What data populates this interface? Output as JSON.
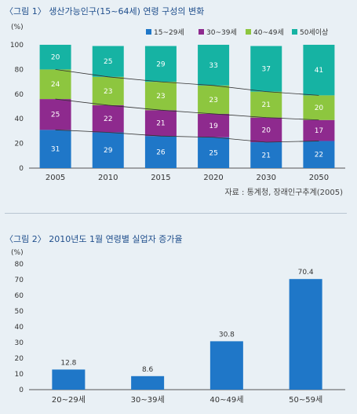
{
  "chart_data": [
    {
      "type": "bar",
      "stacked": true,
      "title": "〈그림 1〉 생산가능인구(15~64세) 연령 구성의 변화",
      "ylabel": "(%)",
      "ylim": [
        0,
        100
      ],
      "yticks": [
        0,
        20,
        40,
        60,
        80,
        100
      ],
      "categories": [
        "2005",
        "2010",
        "2015",
        "2020",
        "2030",
        "2050"
      ],
      "series": [
        {
          "name": "15~29세",
          "color": "#1f77c8",
          "values": [
            31,
            29,
            26,
            25,
            21,
            22
          ]
        },
        {
          "name": "30~39세",
          "color": "#8e2a8e",
          "values": [
            25,
            22,
            21,
            19,
            20,
            17
          ]
        },
        {
          "name": "40~49세",
          "color": "#8dc63f",
          "values": [
            24,
            23,
            23,
            23,
            21,
            20
          ]
        },
        {
          "name": "50세이상",
          "color": "#16b3a3",
          "values": [
            20,
            25,
            29,
            33,
            37,
            41
          ]
        }
      ],
      "legend": "top-right",
      "trend_lines": true,
      "source": "자료 : 통계청, 장래인구추계(2005)"
    },
    {
      "type": "bar",
      "title": "〈그림 2〉 2010년도 1월 연령별 실업자 증가율",
      "ylabel": "(%)",
      "ylim": [
        0,
        80
      ],
      "yticks": [
        0,
        10,
        20,
        30,
        40,
        50,
        60,
        70,
        80
      ],
      "categories": [
        "20~29세",
        "30~39세",
        "40~49세",
        "50~59세"
      ],
      "values": [
        12.8,
        8.6,
        30.8,
        70.4
      ],
      "value_labels": [
        "12.8",
        "8.6",
        "30.8",
        "70.4"
      ],
      "color": "#1f77c8"
    }
  ]
}
